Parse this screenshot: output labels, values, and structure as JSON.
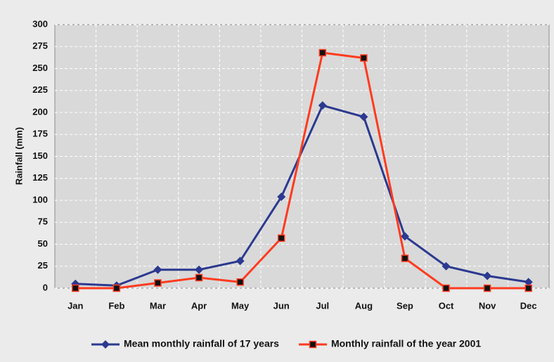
{
  "chart_data": {
    "type": "line",
    "y_label": "Rainfall (mm)",
    "categories": [
      "Jan",
      "Feb",
      "Mar",
      "Apr",
      "May",
      "Jun",
      "Jul",
      "Aug",
      "Sep",
      "Oct",
      "Nov",
      "Dec"
    ],
    "series": [
      {
        "name": "Mean monthly rainfall of 17 years",
        "color": "#2b3990",
        "marker": "diamond",
        "values": [
          5,
          3,
          21,
          21,
          31,
          104,
          208,
          195,
          59,
          25,
          14,
          7
        ]
      },
      {
        "name": "Monthly rainfall of the year 2001",
        "color": "#ff3b1f",
        "marker": "square",
        "values": [
          0,
          0,
          6,
          12,
          7,
          57,
          268,
          262,
          34,
          0,
          0,
          0
        ]
      }
    ],
    "ylim": [
      0,
      300
    ],
    "yticks": [
      0,
      25,
      50,
      75,
      100,
      125,
      150,
      175,
      200,
      225,
      250,
      275,
      300
    ],
    "grid": true,
    "legend": "bottom"
  }
}
